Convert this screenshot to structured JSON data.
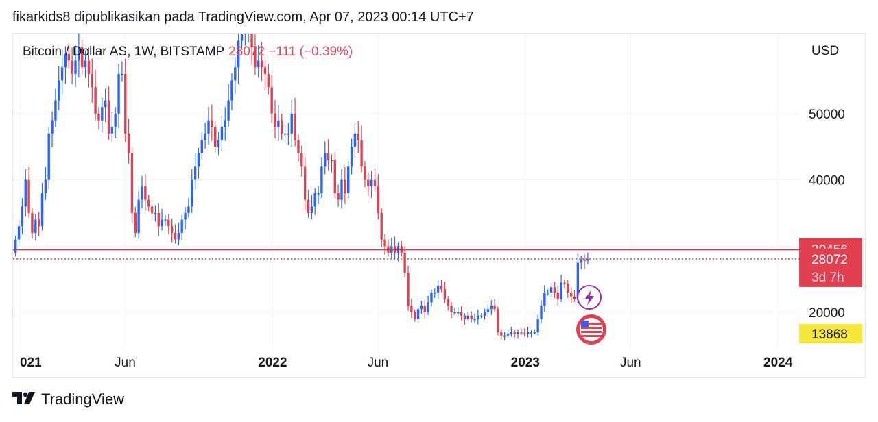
{
  "header": {
    "publish_line": "fikarkids8 dipublikasikan pada TradingView.com, Apr 07, 2023 00:14 UTC+7"
  },
  "legend": {
    "symbol": "Bitcoin / Dollar AS, 1W, BITSTAMP",
    "values": "28072  −111 (−0.39%)"
  },
  "footer": {
    "brand": "TradingView"
  },
  "colors": {
    "up": "#2962ff",
    "down": "#e0404f",
    "price_line": "#cc2f45",
    "low_badge": "#f5e83a"
  },
  "badges": {
    "resistance": "29456",
    "last_price": "28072",
    "countdown": "3d 7h",
    "low": "13868"
  },
  "chart_data": {
    "type": "candlestick",
    "currency": "USD",
    "y_ticks": [
      20000,
      40000,
      50000
    ],
    "x_ticks": [
      {
        "label": "021",
        "date": "2021-01",
        "bold": true
      },
      {
        "label": "Jun",
        "date": "2021-06",
        "bold": false
      },
      {
        "label": "2022",
        "date": "2022-01",
        "bold": true
      },
      {
        "label": "Jun",
        "date": "2022-06",
        "bold": false
      },
      {
        "label": "2023",
        "date": "2023-01",
        "bold": true
      },
      {
        "label": "Jun",
        "date": "2023-06",
        "bold": false
      },
      {
        "label": "2024",
        "date": "2024-01",
        "bold": true
      }
    ],
    "grid": true,
    "horizontal_lines": [
      {
        "price": 29456,
        "style": "solid"
      },
      {
        "price": 28072,
        "style": "dotted"
      }
    ],
    "weekly_closes_approx": [
      31000,
      33000,
      36000,
      40000,
      35000,
      32000,
      34000,
      33000,
      38000,
      40000,
      47000,
      49000,
      52000,
      55000,
      57000,
      59000,
      58000,
      56000,
      58000,
      60000,
      57000,
      58000,
      56000,
      54000,
      50000,
      49000,
      51000,
      52000,
      47000,
      48000,
      50000,
      56000,
      56000,
      47000,
      44000,
      35000,
      32000,
      37000,
      39000,
      37000,
      36000,
      35000,
      35000,
      33000,
      34000,
      34000,
      33000,
      32000,
      31000,
      32000,
      34000,
      35000,
      36000,
      40000,
      42000,
      44000,
      46000,
      47000,
      49000,
      48000,
      45000,
      46000,
      48000,
      49000,
      52000,
      55000,
      57000,
      61000,
      62000,
      63000,
      64000,
      60000,
      57000,
      58000,
      57000,
      56000,
      54000,
      50000,
      48000,
      49000,
      47000,
      47000,
      47000,
      50000,
      46000,
      44000,
      42000,
      37000,
      35000,
      36000,
      38000,
      38000,
      42000,
      44000,
      43000,
      43000,
      38000,
      37000,
      40000,
      38000,
      42000,
      45000,
      47000,
      46000,
      42000,
      40000,
      39000,
      40000,
      39000,
      35000,
      31000,
      30000,
      29000,
      30000,
      29000,
      30000,
      29000,
      26000,
      21000,
      20000,
      19000,
      20500,
      21000,
      20000,
      21500,
      23000,
      23000,
      24000,
      23500,
      22000,
      21000,
      20000,
      20000,
      20000,
      19500,
      19000,
      19500,
      19000,
      19000,
      19500,
      19500,
      20000,
      20500,
      21000,
      20500,
      17000,
      16500,
      16500,
      16800,
      17000,
      16800,
      17000,
      16900,
      16800,
      17000,
      17000,
      17000,
      19000,
      21000,
      23000,
      23000,
      23800,
      23000,
      22000,
      24500,
      24300,
      23000,
      22400,
      22000,
      27500,
      28000,
      27800,
      28072
    ]
  }
}
